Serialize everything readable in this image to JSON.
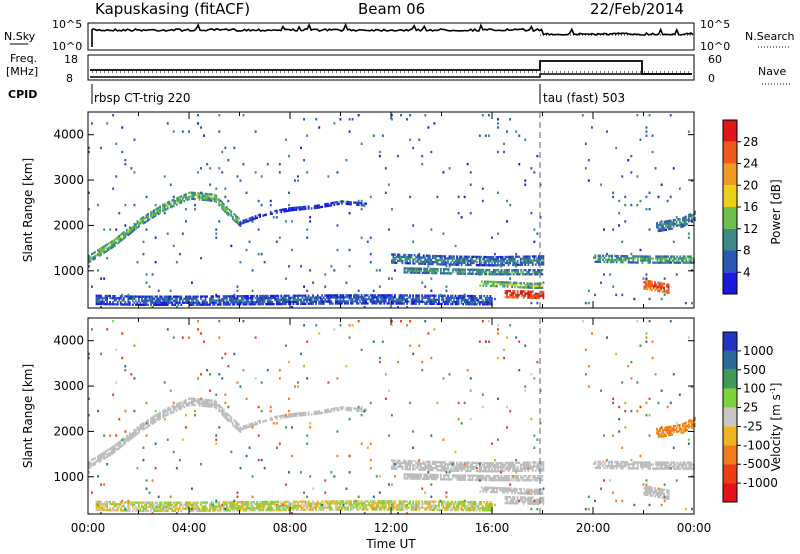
{
  "header": {
    "station": "Kapuskasing (fitACF)",
    "beam": "Beam 06",
    "date": "22/Feb/2014"
  },
  "top_panels": {
    "nsky_label": "N.Sky",
    "nsky_ticks": [
      "10^5",
      "10^0"
    ],
    "nsearch_label": "N.Search",
    "nsearch_ticks": [
      "10^5",
      "10^0"
    ],
    "freq_label_line1": "Freq.",
    "freq_label_line2": "[MHz]",
    "freq_ticks": [
      "18",
      "8"
    ],
    "nave_label": "Nave",
    "nave_ticks": [
      "60",
      "0"
    ],
    "cpid_label": "CPID",
    "cpid_segments": [
      {
        "name": "rbsp CT-trig 220",
        "start_hour": 0,
        "end_hour": 18
      },
      {
        "name": "tau (fast) 503",
        "start_hour": 18,
        "end_hour": 24
      }
    ]
  },
  "axes": {
    "ylabel": "Slant Range [km]",
    "yticks": [
      "1000",
      "2000",
      "3000",
      "4000"
    ],
    "xticks": [
      "00:00",
      "04:00",
      "08:00",
      "12:00",
      "16:00",
      "20:00",
      "00:00"
    ],
    "xlabel": "Time UT"
  },
  "power_colorbar": {
    "label": "Power [dB]",
    "ticks": [
      "4",
      "8",
      "12",
      "16",
      "20",
      "24",
      "28"
    ],
    "colors": [
      "#1a1adf",
      "#2b57b5",
      "#3c8a86",
      "#6cbf4b",
      "#ecd01b",
      "#f29a1d",
      "#ef5a1a",
      "#e0161a"
    ]
  },
  "velocity_colorbar": {
    "label": "Velocity",
    "unit_prefix": "[m s",
    "unit_exp": "-1",
    "unit_suffix": "]",
    "ticks": [
      "1000",
      "500",
      "100",
      "25",
      "-25",
      "-100",
      "-500",
      "-1000"
    ],
    "colors": [
      "#2234c2",
      "#2a6a96",
      "#3f9a58",
      "#7ed23a",
      "#c8c8c8",
      "#f0b41e",
      "#f07a1c",
      "#ec3c18",
      "#e4141a"
    ]
  },
  "chart_data": {
    "type": "heatmap",
    "x_range_hours": [
      0,
      24
    ],
    "y_range_km": [
      180,
      4500
    ],
    "power_range_db": [
      0,
      30
    ],
    "velocity_range_ms": [
      -1000,
      1000
    ],
    "groundscatter_color": "#bdbdbd",
    "features": [
      {
        "kind": "band",
        "x": [
          0.0,
          1.0,
          2.0,
          3.0,
          4.0,
          5.0,
          5.5,
          6.0
        ],
        "y": [
          1250,
          1600,
          2050,
          2400,
          2650,
          2600,
          2300,
          2050
        ],
        "thickness_km": 160,
        "power_db": 13,
        "velocity_ms": 0,
        "groundscatter": true
      },
      {
        "kind": "band",
        "x": [
          6.0,
          7.0,
          8.0,
          9.0,
          10.0,
          11.0
        ],
        "y": [
          2050,
          2250,
          2350,
          2400,
          2500,
          2450
        ],
        "thickness_km": 70,
        "power_db": 6,
        "velocity_ms": 0,
        "groundscatter": true
      },
      {
        "kind": "band",
        "x": [
          12.0,
          13.0,
          14.0,
          15.0,
          16.0,
          17.0,
          18.0
        ],
        "y": [
          1250,
          1230,
          1210,
          1200,
          1190,
          1200,
          1210
        ],
        "thickness_km": 180,
        "power_db": 9,
        "velocity_ms": 0,
        "groundscatter": true
      },
      {
        "kind": "band",
        "x": [
          12.5,
          14.0,
          16.0,
          18.0
        ],
        "y": [
          1000,
          980,
          960,
          960
        ],
        "thickness_km": 110,
        "power_db": 11,
        "velocity_ms": 0,
        "groundscatter": true
      },
      {
        "kind": "band",
        "x": [
          15.5,
          16.5,
          17.5,
          18.0
        ],
        "y": [
          700,
          680,
          650,
          650
        ],
        "thickness_km": 90,
        "power_db": 15,
        "velocity_ms": 0,
        "groundscatter": true
      },
      {
        "kind": "band",
        "x": [
          16.5,
          17.2,
          18.0
        ],
        "y": [
          480,
          470,
          460
        ],
        "thickness_km": 160,
        "power_db": 28,
        "velocity_ms": 0,
        "groundscatter": true
      },
      {
        "kind": "band",
        "x": [
          20.0,
          21.0,
          22.0,
          23.0,
          24.0
        ],
        "y": [
          1250,
          1240,
          1230,
          1230,
          1230
        ],
        "thickness_km": 140,
        "power_db": 12,
        "velocity_ms": 0,
        "groundscatter": true
      },
      {
        "kind": "band",
        "x": [
          22.0,
          22.5,
          23.0
        ],
        "y": [
          700,
          650,
          600
        ],
        "thickness_km": 220,
        "power_db": 26,
        "velocity_ms": 0,
        "groundscatter": true
      },
      {
        "kind": "band",
        "x": [
          22.5,
          23.5,
          24.0
        ],
        "y": [
          1950,
          2050,
          2200
        ],
        "thickness_km": 200,
        "power_db": 10,
        "velocity_ms": -150,
        "groundscatter": false
      },
      {
        "kind": "band",
        "x": [
          0.3,
          2.0,
          4.0,
          6.0,
          8.0,
          10.0,
          12.0,
          14.0,
          16.0
        ],
        "y": [
          350,
          330,
          330,
          340,
          350,
          360,
          360,
          350,
          340
        ],
        "thickness_km": 200,
        "power_db": 7,
        "velocity_ms": 0,
        "groundscatter": false
      }
    ],
    "noise": {
      "density": 0.045,
      "mean_power_db": 5,
      "velocity_spread_ms": 800
    }
  }
}
